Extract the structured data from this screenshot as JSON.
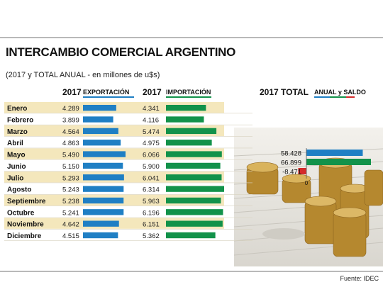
{
  "title": "INTERCAMBIO COMERCIAL ARGENTINO",
  "subtitle": "(2017 y TOTAL ANUAL - en millones de u$s)",
  "source": "Fuente: IDEC",
  "colors": {
    "export": "#1f7fc4",
    "import": "#12924a",
    "saldo": "#d42b2b",
    "row_stripe": "#f4e7bc"
  },
  "headers": {
    "export_year": "2017",
    "export_label": "EXPORTACIÓN",
    "import_year": "2017",
    "import_label": "IMPORTACIÓN",
    "total_label": "2017 TOTAL",
    "total_sub": "ANUAL y SALDO"
  },
  "chart_data": [
    {
      "type": "bar",
      "orientation": "horizontal",
      "categories": [
        "Enero",
        "Febrero",
        "Marzo",
        "Abril",
        "Mayo",
        "Junio",
        "Julio",
        "Agosto",
        "Septiembre",
        "Octubre",
        "Noviembre",
        "Diciembre"
      ],
      "series": [
        {
          "name": "EXPORTACIÓN",
          "values": [
            4289,
            3899,
            4564,
            4863,
            5490,
            5150,
            5293,
            5243,
            5238,
            5241,
            4642,
            4515
          ],
          "labels": [
            "4.289",
            "3.899",
            "4.564",
            "4.863",
            "5.490",
            "5.150",
            "5.293",
            "5.243",
            "5.238",
            "5.241",
            "4.642",
            "4.515"
          ]
        },
        {
          "name": "IMPORTACIÓN",
          "values": [
            4341,
            4116,
            5474,
            4975,
            6066,
            5900,
            6041,
            6314,
            5963,
            6196,
            6151,
            5362
          ],
          "labels": [
            "4.341",
            "4.116",
            "5.474",
            "4.975",
            "6.066",
            "5.900",
            "6.041",
            "6.314",
            "5.963",
            "6.196",
            "6.151",
            "5.362"
          ]
        }
      ]
    },
    {
      "type": "bar",
      "orientation": "horizontal",
      "title": "2017 TOTAL",
      "subtitle": "ANUAL y SALDO",
      "values": [
        58428,
        66899,
        -8471
      ],
      "labels": [
        "58.428",
        "66.899",
        "-8.471"
      ],
      "colors": [
        "#1f7fc4",
        "#12924a",
        "#d42b2b"
      ],
      "axis_zero_label": "0"
    }
  ]
}
